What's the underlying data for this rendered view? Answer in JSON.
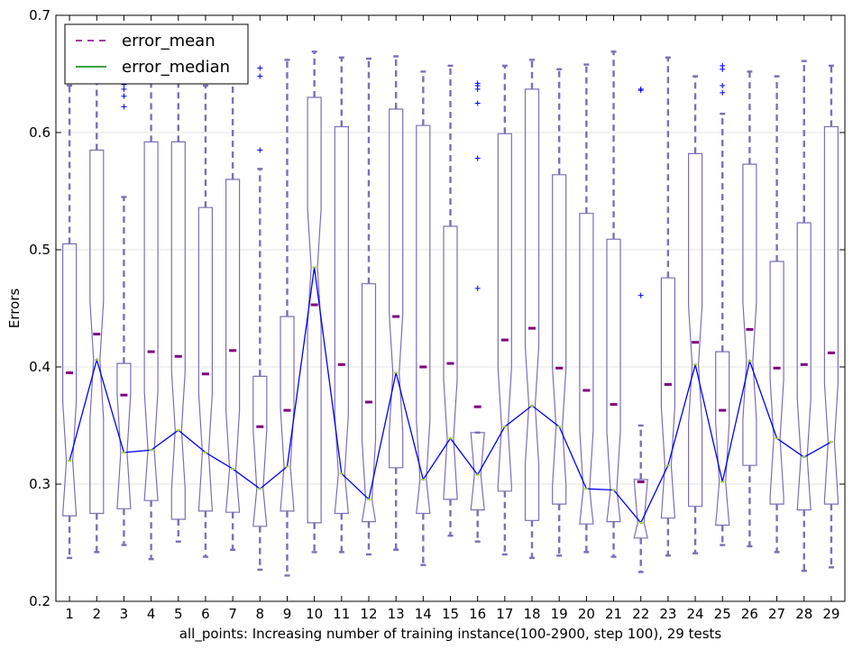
{
  "chart_data": {
    "type": "box",
    "title": "",
    "xlabel": "all_points: Increasing number of training instance(100-2900, step 100), 29 tests",
    "ylabel": "Errors",
    "ylim": [
      0.2,
      0.7
    ],
    "yticks": [
      "0.2",
      "0.3",
      "0.4",
      "0.5",
      "0.6",
      "0.7"
    ],
    "grid": "horizontal",
    "legend": {
      "position": "top-left",
      "entries": [
        {
          "label": "error_mean",
          "style": "dashed",
          "color": "#800080"
        },
        {
          "label": "error_median",
          "style": "solid",
          "color": "#008000"
        }
      ]
    },
    "colors": {
      "box": "#7b6fb8",
      "mean_marker": "#800080",
      "median_line": "#0000ff",
      "median_marker": "#9acd32",
      "flier": "#0000ff"
    },
    "categories": [
      "1",
      "2",
      "3",
      "4",
      "5",
      "6",
      "7",
      "8",
      "9",
      "10",
      "11",
      "12",
      "13",
      "14",
      "15",
      "16",
      "17",
      "18",
      "19",
      "20",
      "21",
      "22",
      "23",
      "24",
      "25",
      "26",
      "27",
      "28",
      "29"
    ],
    "boxes": [
      {
        "whislo": 0.237,
        "q1": 0.273,
        "med": 0.32,
        "q3": 0.505,
        "whishi": 0.64,
        "mean": 0.395,
        "fliers": []
      },
      {
        "whislo": 0.242,
        "q1": 0.275,
        "med": 0.406,
        "q3": 0.585,
        "whishi": 0.662,
        "mean": 0.428,
        "fliers": []
      },
      {
        "whislo": 0.248,
        "q1": 0.279,
        "med": 0.327,
        "q3": 0.403,
        "whishi": 0.545,
        "mean": 0.376,
        "fliers": [
          0.622,
          0.631,
          0.637,
          0.641
        ]
      },
      {
        "whislo": 0.236,
        "q1": 0.286,
        "med": 0.329,
        "q3": 0.592,
        "whishi": 0.662,
        "mean": 0.413,
        "fliers": []
      },
      {
        "whislo": 0.251,
        "q1": 0.27,
        "med": 0.346,
        "q3": 0.592,
        "whishi": 0.662,
        "mean": 0.409,
        "fliers": []
      },
      {
        "whislo": 0.238,
        "q1": 0.277,
        "med": 0.327,
        "q3": 0.536,
        "whishi": 0.64,
        "mean": 0.394,
        "fliers": []
      },
      {
        "whislo": 0.244,
        "q1": 0.276,
        "med": 0.313,
        "q3": 0.56,
        "whishi": 0.66,
        "mean": 0.414,
        "fliers": []
      },
      {
        "whislo": 0.227,
        "q1": 0.264,
        "med": 0.296,
        "q3": 0.392,
        "whishi": 0.569,
        "mean": 0.349,
        "fliers": [
          0.585,
          0.648,
          0.655
        ]
      },
      {
        "whislo": 0.222,
        "q1": 0.277,
        "med": 0.315,
        "q3": 0.443,
        "whishi": 0.662,
        "mean": 0.363,
        "fliers": []
      },
      {
        "whislo": 0.242,
        "q1": 0.267,
        "med": 0.485,
        "q3": 0.63,
        "whishi": 0.669,
        "mean": 0.453,
        "fliers": []
      },
      {
        "whislo": 0.242,
        "q1": 0.275,
        "med": 0.309,
        "q3": 0.605,
        "whishi": 0.664,
        "mean": 0.402,
        "fliers": []
      },
      {
        "whislo": 0.24,
        "q1": 0.268,
        "med": 0.287,
        "q3": 0.471,
        "whishi": 0.663,
        "mean": 0.37,
        "fliers": []
      },
      {
        "whislo": 0.244,
        "q1": 0.314,
        "med": 0.395,
        "q3": 0.62,
        "whishi": 0.665,
        "mean": 0.443,
        "fliers": []
      },
      {
        "whislo": 0.231,
        "q1": 0.275,
        "med": 0.304,
        "q3": 0.606,
        "whishi": 0.652,
        "mean": 0.4,
        "fliers": []
      },
      {
        "whislo": 0.256,
        "q1": 0.287,
        "med": 0.339,
        "q3": 0.52,
        "whishi": 0.657,
        "mean": 0.403,
        "fliers": []
      },
      {
        "whislo": 0.251,
        "q1": 0.278,
        "med": 0.308,
        "q3": 0.344,
        "whishi": 0.344,
        "mean": 0.366,
        "fliers": [
          0.467,
          0.578,
          0.625,
          0.637,
          0.64,
          0.642
        ]
      },
      {
        "whislo": 0.24,
        "q1": 0.294,
        "med": 0.349,
        "q3": 0.599,
        "whishi": 0.657,
        "mean": 0.423,
        "fliers": []
      },
      {
        "whislo": 0.237,
        "q1": 0.269,
        "med": 0.367,
        "q3": 0.637,
        "whishi": 0.662,
        "mean": 0.433,
        "fliers": []
      },
      {
        "whislo": 0.239,
        "q1": 0.283,
        "med": 0.349,
        "q3": 0.564,
        "whishi": 0.654,
        "mean": 0.399,
        "fliers": []
      },
      {
        "whislo": 0.242,
        "q1": 0.266,
        "med": 0.296,
        "q3": 0.531,
        "whishi": 0.658,
        "mean": 0.38,
        "fliers": []
      },
      {
        "whislo": 0.238,
        "q1": 0.268,
        "med": 0.295,
        "q3": 0.509,
        "whishi": 0.669,
        "mean": 0.368,
        "fliers": []
      },
      {
        "whislo": 0.225,
        "q1": 0.254,
        "med": 0.267,
        "q3": 0.304,
        "whishi": 0.35,
        "mean": 0.302,
        "fliers": [
          0.461,
          0.636,
          0.637
        ]
      },
      {
        "whislo": 0.239,
        "q1": 0.271,
        "med": 0.316,
        "q3": 0.476,
        "whishi": 0.664,
        "mean": 0.385,
        "fliers": []
      },
      {
        "whislo": 0.241,
        "q1": 0.281,
        "med": 0.402,
        "q3": 0.582,
        "whishi": 0.648,
        "mean": 0.421,
        "fliers": []
      },
      {
        "whislo": 0.248,
        "q1": 0.265,
        "med": 0.302,
        "q3": 0.413,
        "whishi": 0.616,
        "mean": 0.363,
        "fliers": [
          0.634,
          0.64,
          0.654,
          0.657
        ]
      },
      {
        "whislo": 0.247,
        "q1": 0.316,
        "med": 0.405,
        "q3": 0.573,
        "whishi": 0.652,
        "mean": 0.432,
        "fliers": []
      },
      {
        "whislo": 0.242,
        "q1": 0.283,
        "med": 0.339,
        "q3": 0.49,
        "whishi": 0.648,
        "mean": 0.399,
        "fliers": []
      },
      {
        "whislo": 0.226,
        "q1": 0.278,
        "med": 0.323,
        "q3": 0.523,
        "whishi": 0.661,
        "mean": 0.402,
        "fliers": []
      },
      {
        "whislo": 0.229,
        "q1": 0.283,
        "med": 0.336,
        "q3": 0.605,
        "whishi": 0.657,
        "mean": 0.412,
        "fliers": []
      }
    ]
  }
}
